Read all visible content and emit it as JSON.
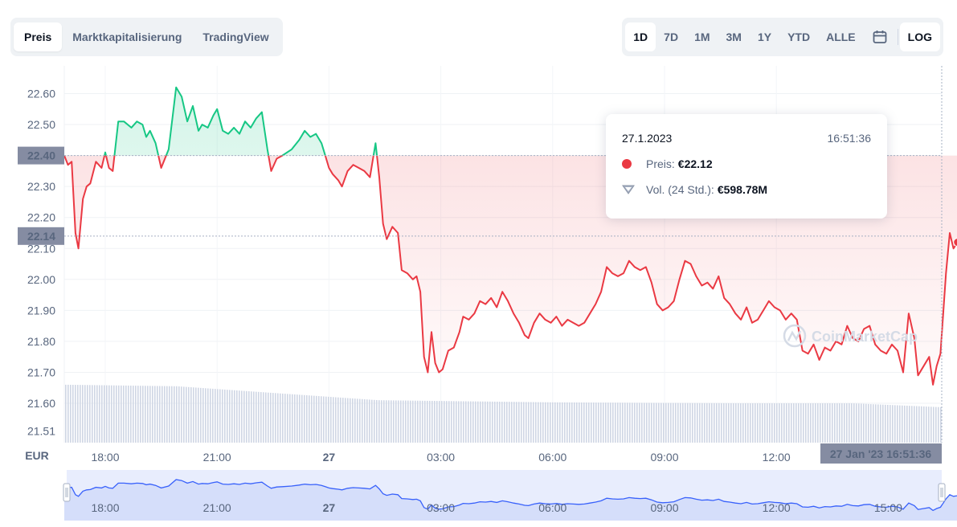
{
  "tabs": [
    {
      "label": "Preis",
      "active": true
    },
    {
      "label": "Marktkapitalisierung",
      "active": false
    },
    {
      "label": "TradingView",
      "active": false
    }
  ],
  "ranges": [
    {
      "label": "1D",
      "active": true
    },
    {
      "label": "7D",
      "active": false
    },
    {
      "label": "1M",
      "active": false
    },
    {
      "label": "3M",
      "active": false
    },
    {
      "label": "1Y",
      "active": false
    },
    {
      "label": "YTD",
      "active": false
    },
    {
      "label": "ALLE",
      "active": false
    }
  ],
  "calendar_icon": "calendar-icon",
  "log_label": "LOG",
  "tooltip": {
    "date": "27.1.2023",
    "time": "16:51:36",
    "price_label": "Preis:",
    "price_value": "€22.12",
    "volume_label": "Vol. (24 Std.):",
    "volume_value": "€598.78M"
  },
  "watermark": "CoinMarketCap",
  "colors": {
    "up": "#16c784",
    "down": "#ea3943",
    "volume": "#cfd6e4",
    "navigator": "#3861fb",
    "muted": "#58667e"
  },
  "chart_data": {
    "type": "line",
    "currency_label": "EUR",
    "reference_price": 22.4,
    "current_price": 22.14,
    "current_badge": "22.14",
    "reference_badge": "22.40",
    "crosshair_label": "27 Jan '23   16:51:36",
    "ylim": [
      21.51,
      22.65
    ],
    "y_ticks": [
      "22.60",
      "22.50",
      "22.40",
      "22.30",
      "22.20",
      "22.10",
      "22.00",
      "21.90",
      "21.80",
      "21.70",
      "21.60",
      "21.51"
    ],
    "x_ticks": [
      {
        "label": "18:00",
        "h": 18,
        "bold": false
      },
      {
        "label": "21:00",
        "h": 21,
        "bold": false
      },
      {
        "label": "27",
        "h": 24,
        "bold": true
      },
      {
        "label": "03:00",
        "h": 27,
        "bold": false
      },
      {
        "label": "06:00",
        "h": 30,
        "bold": false
      },
      {
        "label": "09:00",
        "h": 33,
        "bold": false
      },
      {
        "label": "12:00",
        "h": 36,
        "bold": false
      }
    ],
    "nav_ticks": [
      {
        "label": "18:00",
        "h": 18,
        "bold": false
      },
      {
        "label": "21:00",
        "h": 21,
        "bold": false
      },
      {
        "label": "27",
        "h": 24,
        "bold": true
      },
      {
        "label": "03:00",
        "h": 27,
        "bold": false
      },
      {
        "label": "06:00",
        "h": 30,
        "bold": false
      },
      {
        "label": "09:00",
        "h": 33,
        "bold": false
      },
      {
        "label": "12:00",
        "h": 36,
        "bold": false
      },
      {
        "label": "15:00",
        "h": 39,
        "bold": false
      }
    ],
    "x_start_hour": 16.9,
    "x_end_hour": 40.86,
    "series": [
      {
        "points": [
          [
            16.9,
            22.4
          ],
          [
            17.0,
            22.37
          ],
          [
            17.1,
            22.38
          ],
          [
            17.2,
            22.15
          ],
          [
            17.28,
            22.1
          ],
          [
            17.4,
            22.26
          ],
          [
            17.5,
            22.3
          ],
          [
            17.6,
            22.31
          ],
          [
            17.75,
            22.38
          ],
          [
            17.9,
            22.36
          ],
          [
            18.0,
            22.41
          ],
          [
            18.1,
            22.36
          ],
          [
            18.2,
            22.35
          ],
          [
            18.35,
            22.51
          ],
          [
            18.5,
            22.51
          ],
          [
            18.7,
            22.49
          ],
          [
            18.85,
            22.51
          ],
          [
            19.0,
            22.5
          ],
          [
            19.1,
            22.46
          ],
          [
            19.2,
            22.48
          ],
          [
            19.35,
            22.44
          ],
          [
            19.5,
            22.36
          ],
          [
            19.7,
            22.42
          ],
          [
            19.9,
            22.62
          ],
          [
            20.05,
            22.59
          ],
          [
            20.2,
            22.51
          ],
          [
            20.35,
            22.56
          ],
          [
            20.5,
            22.48
          ],
          [
            20.6,
            22.5
          ],
          [
            20.75,
            22.49
          ],
          [
            20.9,
            22.53
          ],
          [
            21.0,
            22.55
          ],
          [
            21.15,
            22.48
          ],
          [
            21.3,
            22.47
          ],
          [
            21.45,
            22.49
          ],
          [
            21.6,
            22.47
          ],
          [
            21.75,
            22.51
          ],
          [
            21.9,
            22.49
          ],
          [
            22.05,
            22.52
          ],
          [
            22.2,
            22.54
          ],
          [
            22.35,
            22.42
          ],
          [
            22.45,
            22.35
          ],
          [
            22.6,
            22.39
          ],
          [
            22.75,
            22.4
          ],
          [
            23.0,
            22.42
          ],
          [
            23.2,
            22.45
          ],
          [
            23.35,
            22.48
          ],
          [
            23.5,
            22.46
          ],
          [
            23.65,
            22.47
          ],
          [
            23.8,
            22.44
          ],
          [
            23.9,
            22.4
          ],
          [
            24.0,
            22.36
          ],
          [
            24.1,
            22.34
          ],
          [
            24.25,
            22.32
          ],
          [
            24.35,
            22.3
          ],
          [
            24.5,
            22.35
          ],
          [
            24.65,
            22.37
          ],
          [
            24.8,
            22.36
          ],
          [
            24.95,
            22.35
          ],
          [
            25.1,
            22.33
          ],
          [
            25.25,
            22.44
          ],
          [
            25.35,
            22.33
          ],
          [
            25.45,
            22.18
          ],
          [
            25.55,
            22.13
          ],
          [
            25.7,
            22.17
          ],
          [
            25.85,
            22.15
          ],
          [
            25.95,
            22.03
          ],
          [
            26.1,
            22.02
          ],
          [
            26.25,
            22.0
          ],
          [
            26.35,
            22.01
          ],
          [
            26.45,
            21.96
          ],
          [
            26.55,
            21.75
          ],
          [
            26.65,
            21.7
          ],
          [
            26.75,
            21.83
          ],
          [
            26.85,
            21.73
          ],
          [
            26.95,
            21.7
          ],
          [
            27.05,
            21.71
          ],
          [
            27.2,
            21.77
          ],
          [
            27.35,
            21.78
          ],
          [
            27.5,
            21.83
          ],
          [
            27.6,
            21.88
          ],
          [
            27.75,
            21.87
          ],
          [
            27.9,
            21.89
          ],
          [
            28.05,
            21.93
          ],
          [
            28.2,
            21.92
          ],
          [
            28.35,
            21.94
          ],
          [
            28.5,
            21.91
          ],
          [
            28.65,
            21.96
          ],
          [
            28.8,
            21.93
          ],
          [
            28.95,
            21.89
          ],
          [
            29.1,
            21.86
          ],
          [
            29.25,
            21.82
          ],
          [
            29.35,
            21.81
          ],
          [
            29.5,
            21.86
          ],
          [
            29.65,
            21.89
          ],
          [
            29.8,
            21.87
          ],
          [
            29.95,
            21.86
          ],
          [
            30.1,
            21.88
          ],
          [
            30.25,
            21.85
          ],
          [
            30.4,
            21.87
          ],
          [
            30.55,
            21.86
          ],
          [
            30.7,
            21.85
          ],
          [
            30.85,
            21.86
          ],
          [
            31.0,
            21.89
          ],
          [
            31.15,
            21.92
          ],
          [
            31.3,
            21.96
          ],
          [
            31.45,
            22.04
          ],
          [
            31.6,
            22.02
          ],
          [
            31.75,
            22.01
          ],
          [
            31.9,
            22.02
          ],
          [
            32.05,
            22.06
          ],
          [
            32.2,
            22.04
          ],
          [
            32.35,
            22.03
          ],
          [
            32.5,
            22.04
          ],
          [
            32.65,
            21.99
          ],
          [
            32.8,
            21.92
          ],
          [
            32.95,
            21.9
          ],
          [
            33.1,
            21.91
          ],
          [
            33.25,
            21.93
          ],
          [
            33.4,
            22.0
          ],
          [
            33.55,
            22.06
          ],
          [
            33.7,
            22.05
          ],
          [
            33.85,
            22.01
          ],
          [
            34.0,
            21.98
          ],
          [
            34.15,
            21.99
          ],
          [
            34.3,
            21.97
          ],
          [
            34.45,
            22.01
          ],
          [
            34.6,
            21.94
          ],
          [
            34.75,
            21.92
          ],
          [
            34.9,
            21.89
          ],
          [
            35.05,
            21.87
          ],
          [
            35.2,
            21.91
          ],
          [
            35.35,
            21.86
          ],
          [
            35.5,
            21.87
          ],
          [
            35.65,
            21.9
          ],
          [
            35.8,
            21.93
          ],
          [
            35.95,
            21.91
          ],
          [
            36.1,
            21.9
          ],
          [
            36.25,
            21.87
          ],
          [
            36.4,
            21.89
          ],
          [
            36.55,
            21.87
          ],
          [
            36.7,
            21.77
          ],
          [
            36.85,
            21.76
          ],
          [
            37.0,
            21.79
          ],
          [
            37.15,
            21.74
          ],
          [
            37.3,
            21.78
          ],
          [
            37.45,
            21.77
          ],
          [
            37.6,
            21.8
          ],
          [
            37.75,
            21.79
          ],
          [
            37.9,
            21.85
          ],
          [
            38.05,
            21.81
          ],
          [
            38.2,
            21.8
          ],
          [
            38.35,
            21.84
          ],
          [
            38.5,
            21.85
          ],
          [
            38.65,
            21.79
          ],
          [
            38.8,
            21.77
          ],
          [
            38.95,
            21.76
          ],
          [
            39.1,
            21.79
          ],
          [
            39.25,
            21.77
          ],
          [
            39.4,
            21.7
          ],
          [
            39.55,
            21.89
          ],
          [
            39.7,
            21.81
          ],
          [
            39.8,
            21.69
          ],
          [
            39.95,
            21.72
          ],
          [
            40.1,
            21.75
          ],
          [
            40.2,
            21.66
          ],
          [
            40.3,
            21.72
          ],
          [
            40.4,
            21.76
          ],
          [
            40.55,
            22.02
          ],
          [
            40.65,
            22.15
          ],
          [
            40.75,
            22.1
          ],
          [
            40.86,
            22.12
          ]
        ]
      }
    ],
    "volume": {
      "axis_min": 21.51,
      "segments": [
        [
          16.9,
          21.66
        ],
        [
          19.9,
          21.655
        ],
        [
          22.9,
          21.63
        ],
        [
          25.3,
          21.61
        ],
        [
          30.0,
          21.603
        ],
        [
          35.0,
          21.6
        ],
        [
          38.0,
          21.6
        ],
        [
          40.86,
          21.585
        ]
      ]
    }
  }
}
